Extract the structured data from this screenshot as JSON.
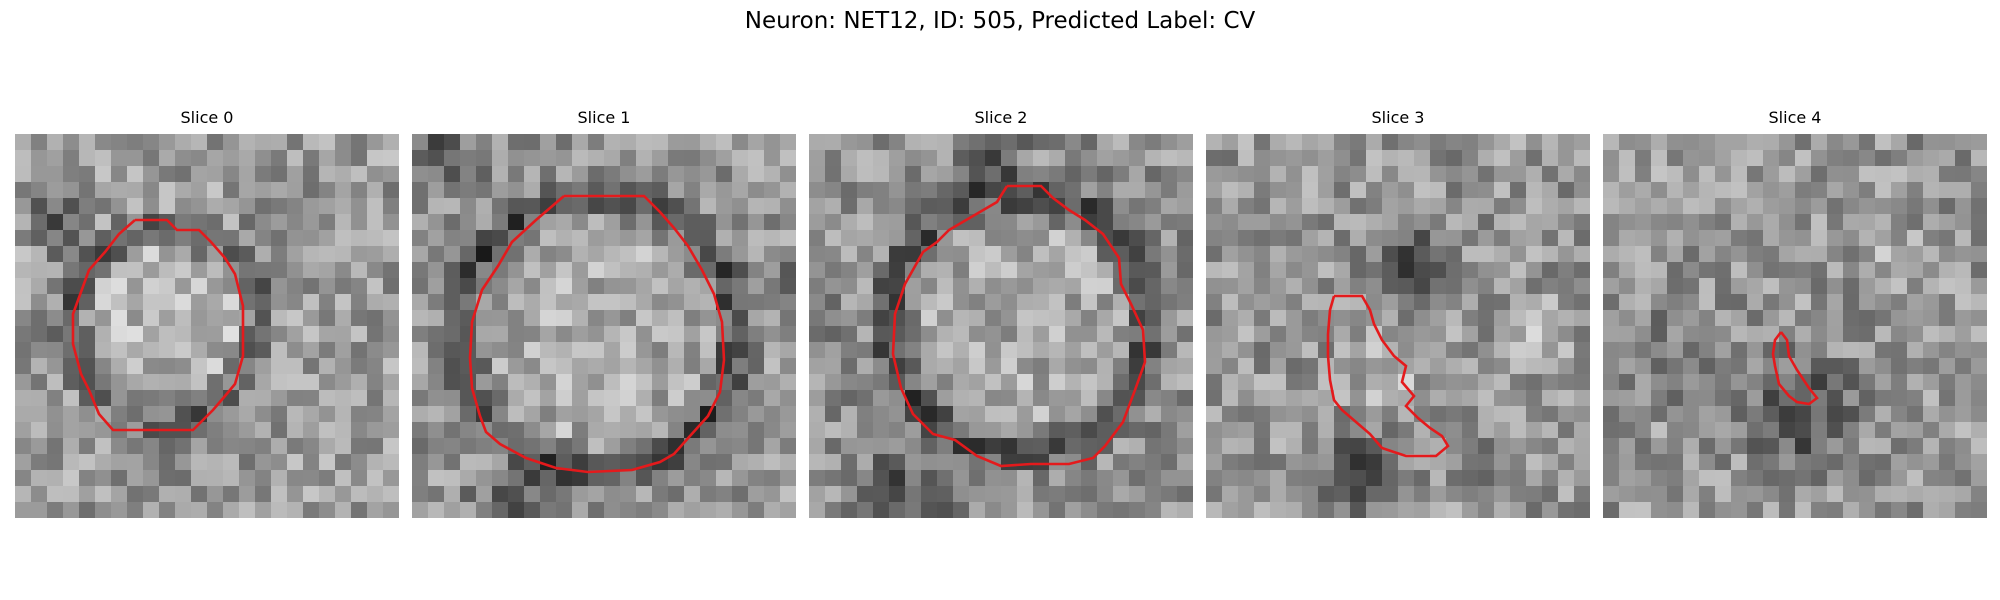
{
  "figure": {
    "title": "Neuron: NET12, ID: 505, Predicted Label: CV",
    "contour_color": "#e41a1c"
  },
  "panels": [
    {
      "title": "Slice 0"
    },
    {
      "title": "Slice 1"
    },
    {
      "title": "Slice 2"
    },
    {
      "title": "Slice 3"
    },
    {
      "title": "Slice 4"
    }
  ]
}
